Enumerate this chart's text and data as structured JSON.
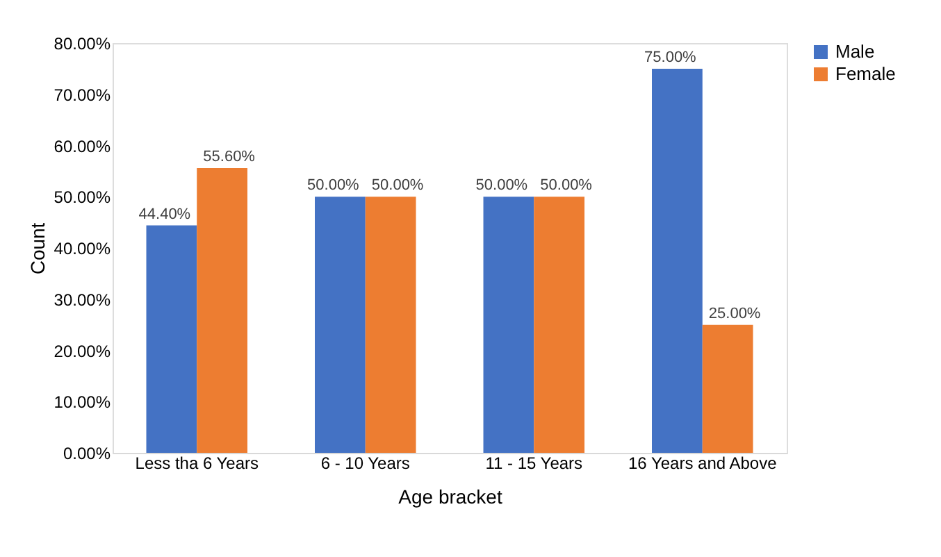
{
  "chart_data": {
    "type": "bar",
    "xlabel": "Age bracket",
    "ylabel": "Count",
    "categories": [
      "Less tha 6 Years",
      "6 - 10 Years",
      "11 - 15 Years",
      "16 Years and Above"
    ],
    "series": [
      {
        "name": "Male",
        "color": "#4472c4",
        "values": [
          44.4,
          50,
          50,
          75
        ],
        "value_labels": [
          "44.40%",
          "50.00%",
          "50.00%",
          "75.00%"
        ]
      },
      {
        "name": "Female",
        "color": "#ed7d31",
        "values": [
          55.6,
          50,
          50,
          25
        ],
        "value_labels": [
          "55.60%",
          "50.00%",
          "50.00%",
          "25.00%"
        ]
      }
    ],
    "ylim": [
      0,
      80
    ],
    "yticks": [
      {
        "value": 0,
        "label": "0.00%"
      },
      {
        "value": 10,
        "label": "10.00%"
      },
      {
        "value": 20,
        "label": "20.00%"
      },
      {
        "value": 30,
        "label": "30.00%"
      },
      {
        "value": 40,
        "label": "40.00%"
      },
      {
        "value": 50,
        "label": "50.00%"
      },
      {
        "value": 60,
        "label": "60.00%"
      },
      {
        "value": 70,
        "label": "70.00%"
      },
      {
        "value": 80,
        "label": "80.00%"
      }
    ],
    "grid": false,
    "legend": "right"
  }
}
